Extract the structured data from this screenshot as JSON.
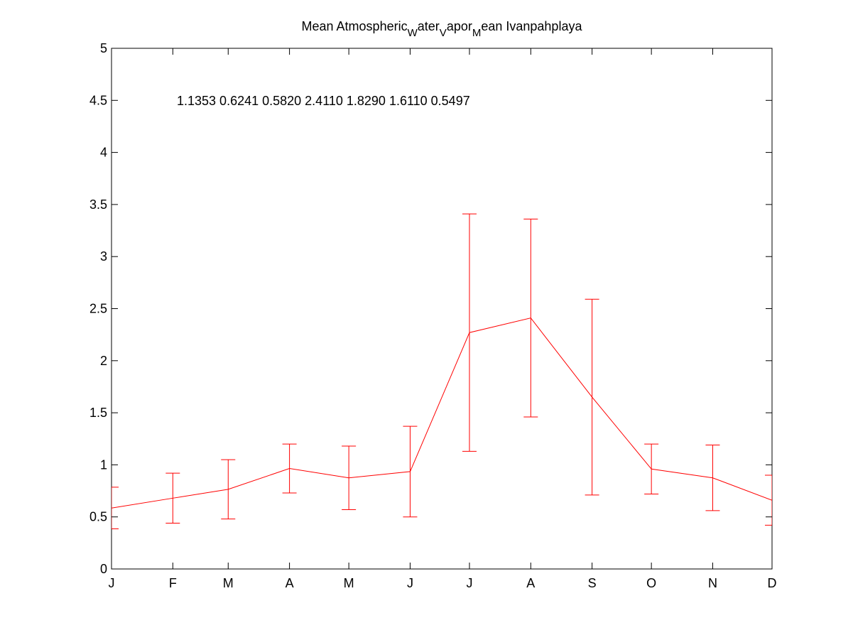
{
  "chart_data": {
    "type": "errorbar",
    "title": [
      "Mean Atmospheric",
      "W",
      "ater",
      "V",
      "apor",
      "M",
      "ean Ivanpahplaya"
    ],
    "annotation": "1.1353  0.6241  0.5820  2.4110  1.8290  1.6110  0.5497",
    "x": [
      1,
      32,
      60,
      91,
      121,
      152,
      182,
      213,
      244,
      274,
      305,
      335
    ],
    "values": [
      0.585,
      0.68,
      0.765,
      0.965,
      0.875,
      0.935,
      2.27,
      2.41,
      1.65,
      0.96,
      0.875,
      0.66
    ],
    "errors": [
      0.2,
      0.24,
      0.285,
      0.235,
      0.305,
      0.435,
      1.14,
      0.95,
      0.94,
      0.24,
      0.315,
      0.24
    ],
    "color": "#ff0000",
    "xlim": [
      1,
      335
    ],
    "xticks": [
      {
        "value": 1,
        "label": "J"
      },
      {
        "value": 32,
        "label": "F"
      },
      {
        "value": 60,
        "label": "M"
      },
      {
        "value": 91,
        "label": "A"
      },
      {
        "value": 121,
        "label": "M"
      },
      {
        "value": 152,
        "label": "J"
      },
      {
        "value": 182,
        "label": "J"
      },
      {
        "value": 213,
        "label": "A"
      },
      {
        "value": 244,
        "label": "S"
      },
      {
        "value": 274,
        "label": "O"
      },
      {
        "value": 305,
        "label": "N"
      },
      {
        "value": 335,
        "label": "D"
      }
    ],
    "ylim": [
      0,
      5
    ],
    "yticks": [
      0,
      0.5,
      1,
      1.5,
      2,
      2.5,
      3,
      3.5,
      4,
      4.5,
      5
    ],
    "grid": false
  }
}
